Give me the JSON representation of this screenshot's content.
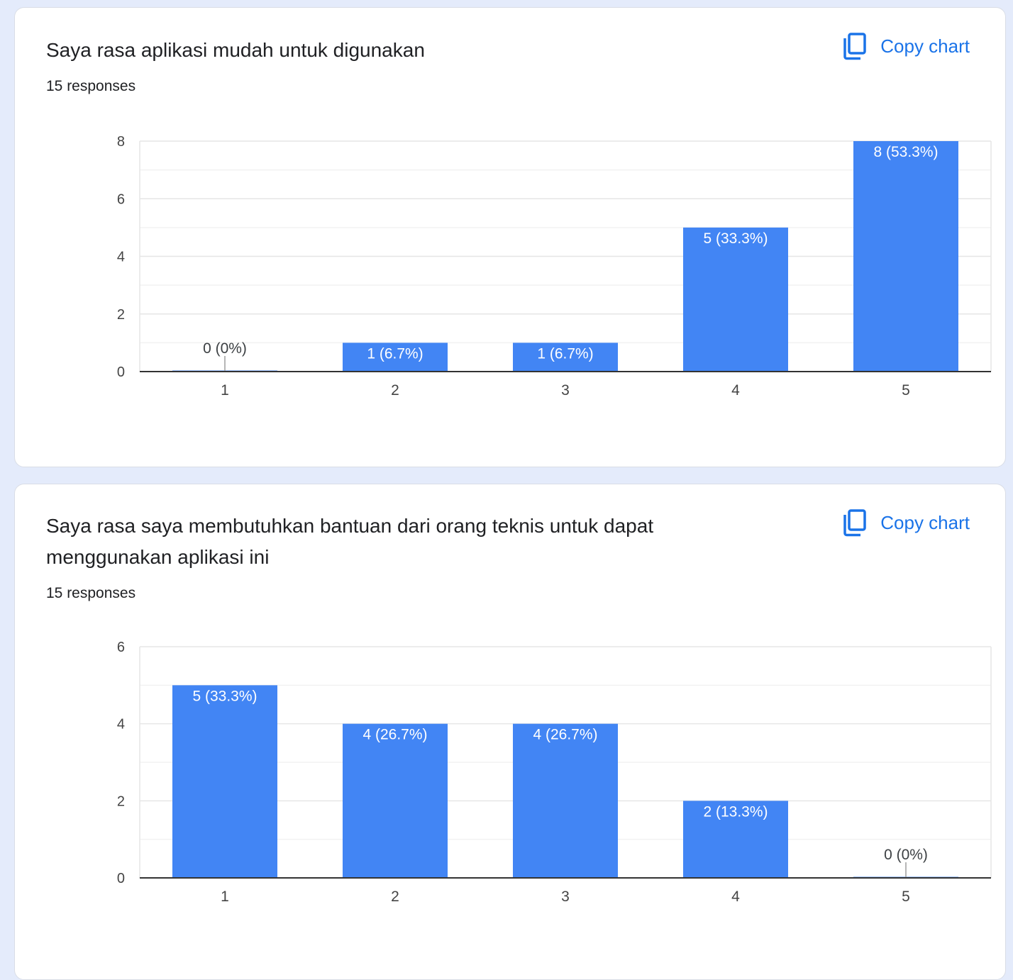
{
  "colors": {
    "bar": "#4285f4",
    "accent": "#1a73e8",
    "label_inside": "#ffffff",
    "label_outside": "#3c4043",
    "gridline": "#e6e6e6",
    "gridline_minor": "#f2f2f2",
    "axis": "#333333"
  },
  "icons": {
    "copy": "copy-icon"
  },
  "charts": [
    {
      "question": "Saya rasa aplikasi mudah untuk digunakan",
      "responses": "15 responses",
      "copy_label": "Copy chart"
    },
    {
      "question": "Saya rasa saya membutuhkan bantuan dari orang teknis untuk dapat menggunakan aplikasi ini",
      "responses": "15 responses",
      "copy_label": "Copy chart"
    }
  ],
  "chart_data": [
    {
      "type": "bar",
      "title": "Saya rasa aplikasi mudah untuk digunakan",
      "categories": [
        "1",
        "2",
        "3",
        "4",
        "5"
      ],
      "values": [
        0,
        1,
        1,
        5,
        8
      ],
      "data_labels": [
        "0 (0%)",
        "1 (6.7%)",
        "1 (6.7%)",
        "5 (33.3%)",
        "8 (53.3%)"
      ],
      "ylim": [
        0,
        8
      ],
      "yticks": [
        0,
        2,
        4,
        6,
        8
      ],
      "grid": true,
      "xlabel": "",
      "ylabel": ""
    },
    {
      "type": "bar",
      "title": "Saya rasa saya membutuhkan bantuan dari orang teknis untuk dapat menggunakan aplikasi ini",
      "categories": [
        "1",
        "2",
        "3",
        "4",
        "5"
      ],
      "values": [
        5,
        4,
        4,
        2,
        0
      ],
      "data_labels": [
        "5 (33.3%)",
        "4 (26.7%)",
        "4 (26.7%)",
        "2 (13.3%)",
        "0 (0%)"
      ],
      "ylim": [
        0,
        6
      ],
      "yticks": [
        0,
        2,
        4,
        6
      ],
      "grid": true,
      "xlabel": "",
      "ylabel": ""
    }
  ]
}
